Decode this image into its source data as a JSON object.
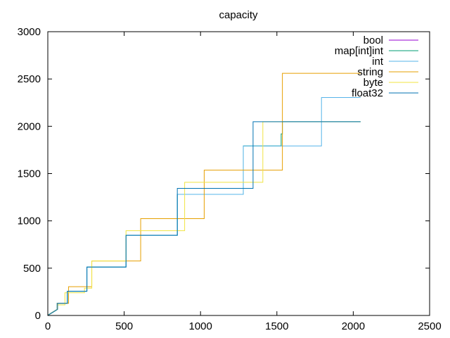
{
  "chart_data": {
    "type": "line",
    "title": "capacity",
    "xlabel": "",
    "ylabel": "",
    "xlim": [
      0,
      2500
    ],
    "ylim": [
      0,
      3000
    ],
    "xticks": [
      0,
      500,
      1000,
      1500,
      2000,
      2500
    ],
    "yticks": [
      0,
      500,
      1000,
      1500,
      2000,
      2500,
      3000
    ],
    "grid": false,
    "legend_position": "top-right",
    "series": [
      {
        "name": "bool",
        "color": "#9400d3",
        "points": []
      },
      {
        "name": "map[int]int",
        "color": "#009e73",
        "points": [
          [
            0,
            0
          ],
          [
            4,
            8
          ],
          [
            12,
            16
          ],
          [
            28,
            32
          ],
          [
            60,
            64
          ],
          [
            60,
            128
          ],
          [
            128,
            128
          ],
          [
            128,
            256
          ],
          [
            256,
            256
          ],
          [
            256,
            512
          ],
          [
            512,
            512
          ],
          [
            512,
            848
          ],
          [
            848,
            848
          ],
          [
            848,
            1280
          ],
          [
            1280,
            1280
          ],
          [
            1280,
            1792
          ],
          [
            1528,
            1792
          ],
          [
            1528,
            1920
          ],
          [
            1536,
            1920
          ],
          [
            1536,
            2048
          ],
          [
            2048,
            2048
          ]
        ]
      },
      {
        "name": "int",
        "color": "#56b4e9",
        "points": [
          [
            0,
            0
          ],
          [
            4,
            8
          ],
          [
            12,
            16
          ],
          [
            28,
            32
          ],
          [
            60,
            64
          ],
          [
            60,
            128
          ],
          [
            128,
            128
          ],
          [
            128,
            256
          ],
          [
            256,
            256
          ],
          [
            256,
            512
          ],
          [
            512,
            512
          ],
          [
            512,
            848
          ],
          [
            848,
            848
          ],
          [
            848,
            1280
          ],
          [
            1280,
            1280
          ],
          [
            1280,
            1792
          ],
          [
            1792,
            1792
          ],
          [
            1792,
            2304
          ],
          [
            2048,
            2304
          ]
        ]
      },
      {
        "name": "string",
        "color": "#e69f00",
        "points": [
          [
            0,
            0
          ],
          [
            6,
            8
          ],
          [
            14,
            16
          ],
          [
            30,
            32
          ],
          [
            62,
            64
          ],
          [
            62,
            128
          ],
          [
            136,
            128
          ],
          [
            136,
            304
          ],
          [
            288,
            304
          ],
          [
            288,
            576
          ],
          [
            608,
            576
          ],
          [
            608,
            1024
          ],
          [
            1024,
            1024
          ],
          [
            1024,
            1536
          ],
          [
            1536,
            1536
          ],
          [
            1536,
            2560
          ],
          [
            2048,
            2560
          ]
        ]
      },
      {
        "name": "byte",
        "color": "#f0e442",
        "points": [
          [
            0,
            0
          ],
          [
            8,
            8
          ],
          [
            16,
            16
          ],
          [
            32,
            32
          ],
          [
            64,
            64
          ],
          [
            64,
            112
          ],
          [
            112,
            112
          ],
          [
            112,
            240
          ],
          [
            240,
            240
          ],
          [
            240,
            288
          ],
          [
            288,
            288
          ],
          [
            288,
            576
          ],
          [
            512,
            576
          ],
          [
            512,
            896
          ],
          [
            896,
            896
          ],
          [
            896,
            1408
          ],
          [
            1408,
            1408
          ],
          [
            1408,
            2048
          ],
          [
            2048,
            2048
          ]
        ]
      },
      {
        "name": "float32",
        "color": "#0072b2",
        "points": [
          [
            0,
            0
          ],
          [
            8,
            8
          ],
          [
            16,
            16
          ],
          [
            32,
            32
          ],
          [
            64,
            64
          ],
          [
            64,
            128
          ],
          [
            128,
            128
          ],
          [
            128,
            256
          ],
          [
            256,
            256
          ],
          [
            256,
            512
          ],
          [
            512,
            512
          ],
          [
            512,
            848
          ],
          [
            848,
            848
          ],
          [
            848,
            1344
          ],
          [
            1344,
            1344
          ],
          [
            1344,
            2048
          ],
          [
            2048,
            2048
          ]
        ]
      }
    ]
  }
}
